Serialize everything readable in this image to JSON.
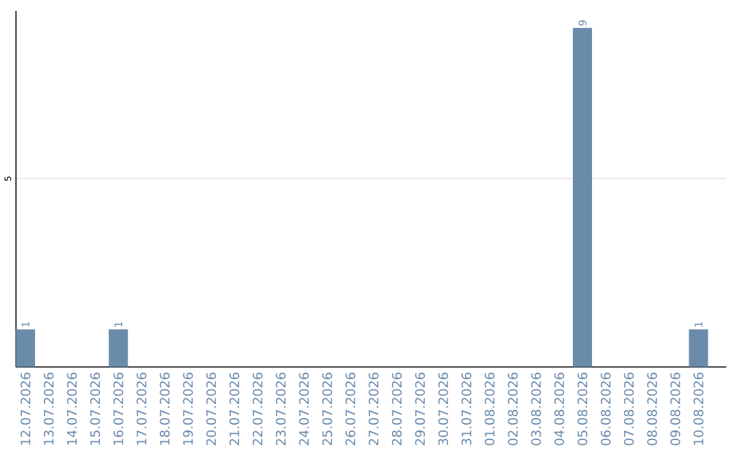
{
  "chart_data": {
    "type": "bar",
    "categories": [
      "12.07.2026",
      "13.07.2026",
      "14.07.2026",
      "15.07.2026",
      "16.07.2026",
      "17.07.2026",
      "18.07.2026",
      "19.07.2026",
      "20.07.2026",
      "21.07.2026",
      "22.07.2026",
      "23.07.2026",
      "24.07.2026",
      "25.07.2026",
      "26.07.2026",
      "27.07.2026",
      "28.07.2026",
      "29.07.2026",
      "30.07.2026",
      "31.07.2026",
      "01.08.2026",
      "02.08.2026",
      "03.08.2026",
      "04.08.2026",
      "05.08.2026",
      "06.08.2026",
      "07.08.2026",
      "08.08.2026",
      "09.08.2026",
      "10.08.2026"
    ],
    "values": [
      1,
      0,
      0,
      0,
      1,
      0,
      0,
      0,
      0,
      0,
      0,
      0,
      0,
      0,
      0,
      0,
      0,
      0,
      0,
      0,
      0,
      0,
      0,
      0,
      9,
      0,
      0,
      0,
      0,
      1
    ],
    "value_labels": [
      "1",
      null,
      null,
      null,
      "1",
      null,
      null,
      null,
      null,
      null,
      null,
      null,
      null,
      null,
      null,
      null,
      null,
      null,
      null,
      null,
      null,
      null,
      null,
      null,
      "9",
      null,
      null,
      null,
      null,
      "1"
    ],
    "color": "#6b8bab",
    "ylim": [
      0,
      9.45
    ],
    "yticks": [
      5
    ],
    "grid": "y"
  }
}
